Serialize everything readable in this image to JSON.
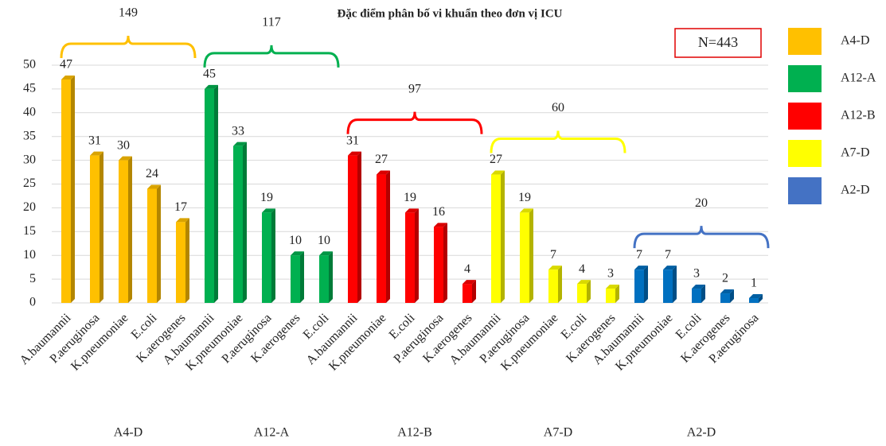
{
  "chart_data": {
    "type": "bar",
    "title": "Đặc điểm phân bố vi khuẩn theo đơn vị ICU",
    "annotation": "N=443",
    "ylim": [
      0,
      50
    ],
    "yticks": [
      0,
      5,
      10,
      15,
      20,
      25,
      30,
      35,
      40,
      45,
      50
    ],
    "grid": true,
    "legend": "right",
    "groups": [
      {
        "name": "A4-D",
        "color": "#ffc000",
        "total": 149,
        "categories": [
          "A.baumannii",
          "P.aeruginosa",
          "K.pneumoniae",
          "E.coli",
          "K.aerogenes"
        ],
        "values": [
          47,
          31,
          30,
          24,
          17
        ]
      },
      {
        "name": "A12-A",
        "color": "#00b050",
        "total": 117,
        "categories": [
          "A.baumannii",
          "K.pneumoniae",
          "P.aeruginosa",
          "K.aerogenes",
          "E.coli"
        ],
        "values": [
          45,
          33,
          19,
          10,
          10
        ]
      },
      {
        "name": "A12-B",
        "color": "#ff0000",
        "total": 97,
        "categories": [
          "A.baumannii",
          "K.pneumoniae",
          "E.coli",
          "P.aeruginosa",
          "K.aerogenes"
        ],
        "values": [
          31,
          27,
          19,
          16,
          4
        ]
      },
      {
        "name": "A7-D",
        "color": "#ffff00",
        "total": 60,
        "categories": [
          "A.baumannii",
          "P.aeruginosa",
          "K.pneumoniae",
          "E.coli",
          "K.aerogenes"
        ],
        "values": [
          27,
          19,
          7,
          4,
          3
        ]
      },
      {
        "name": "A2-D",
        "color": "#0070c0",
        "total": 20,
        "categories": [
          "A.baumannii",
          "K.pneumoniae",
          "E.coli",
          "K.aerogenes",
          "P.aeruginosa"
        ],
        "values": [
          7,
          7,
          3,
          2,
          1
        ]
      }
    ]
  }
}
